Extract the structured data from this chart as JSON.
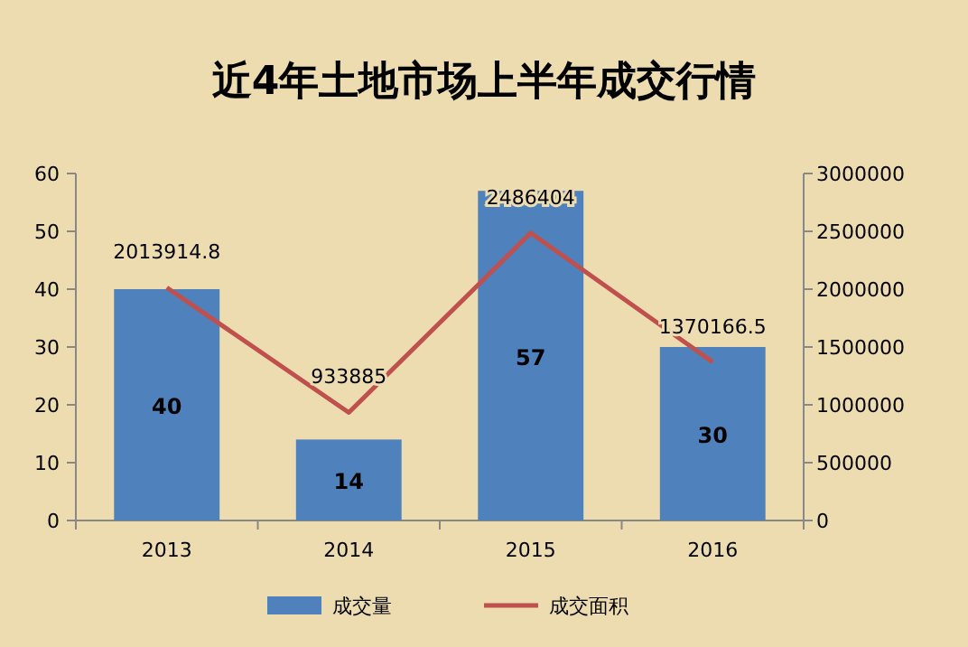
{
  "chart_data": {
    "type": "bar",
    "title": "近4年土地市场上半年成交行情",
    "categories": [
      "2013",
      "2014",
      "2015",
      "2016"
    ],
    "series": [
      {
        "name": "成交量",
        "color": "#4f81bd",
        "values": [
          40,
          14,
          57,
          30
        ]
      },
      {
        "name": "成交面积",
        "type": "line",
        "axis": "y2",
        "color": "#c0504d",
        "values": [
          2013914.8,
          933885,
          2486404,
          1370166.5
        ]
      }
    ],
    "ylim": [
      0,
      60
    ],
    "yticks": [
      0,
      10,
      20,
      30,
      40,
      50,
      60
    ],
    "y2lim": [
      0,
      3000000
    ],
    "y2ticks": [
      0,
      500000,
      1000000,
      1500000,
      2000000,
      2500000,
      3000000
    ],
    "data_labels": true,
    "legend": "bottom",
    "grid": false
  }
}
